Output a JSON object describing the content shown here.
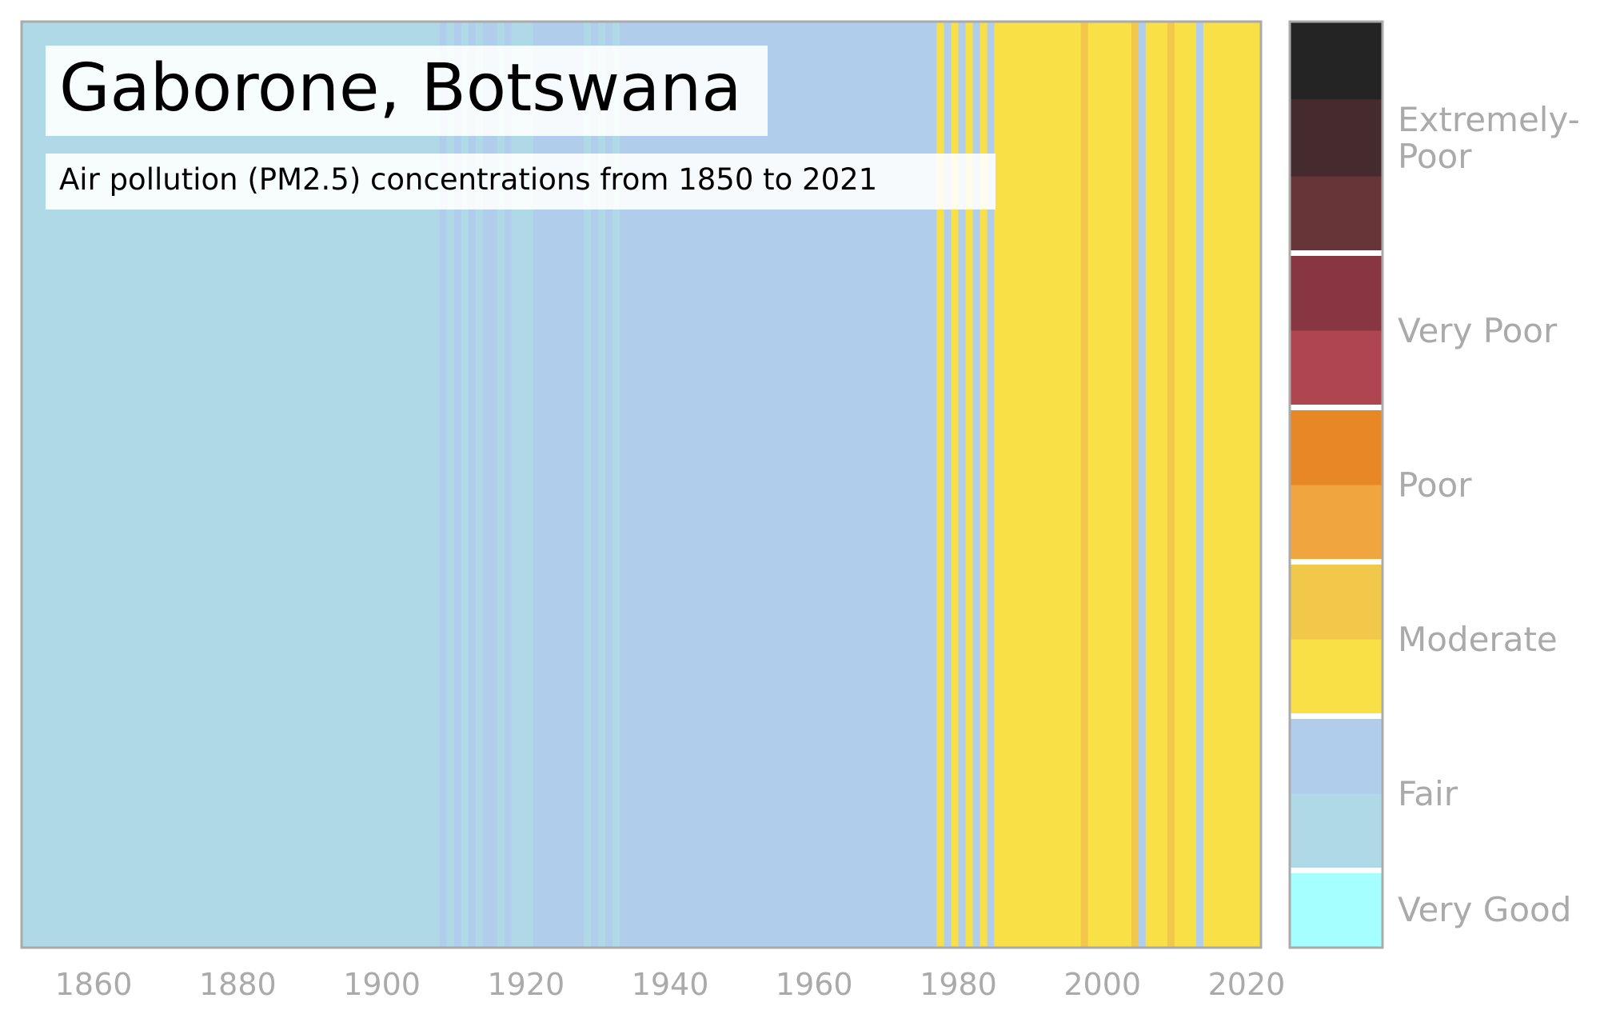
{
  "chart_data": {
    "type": "heatmap",
    "title": "Gaborone, Botswana",
    "subtitle": "Air pollution (PM2.5) concentrations from 1850 to 2021",
    "x_range": [
      1850,
      2022
    ],
    "x_ticks": [
      "1860",
      "1880",
      "1900",
      "1920",
      "1940",
      "1960",
      "1980",
      "2000",
      "2020"
    ],
    "legend_position": "right",
    "levels": [
      {
        "key": "very_good",
        "color": "#a5ffff"
      },
      {
        "key": "fair_low",
        "color": "#b0d9e8"
      },
      {
        "key": "fair_high",
        "color": "#b0ceec"
      },
      {
        "key": "moderate_low",
        "color": "#f9e047"
      },
      {
        "key": "moderate_high",
        "color": "#f2c84b"
      },
      {
        "key": "poor_low",
        "color": "#f0a53f"
      },
      {
        "key": "poor_high",
        "color": "#e88726"
      },
      {
        "key": "very_poor_low",
        "color": "#af4550"
      },
      {
        "key": "very_poor_high",
        "color": "#873642"
      },
      {
        "key": "extremely_poor_low",
        "color": "#673537"
      },
      {
        "key": "extremely_poor_mid",
        "color": "#452b2e"
      },
      {
        "key": "extremely_poor_high",
        "color": "#242424"
      }
    ],
    "category_labels": [
      {
        "label": "Extremely-\nPoor",
        "level_from": 9,
        "level_to": 11
      },
      {
        "label": "Very Poor",
        "level_from": 7,
        "level_to": 8
      },
      {
        "label": "Poor",
        "level_from": 5,
        "level_to": 6
      },
      {
        "label": "Moderate",
        "level_from": 3,
        "level_to": 4
      },
      {
        "label": "Fair",
        "level_from": 1,
        "level_to": 2
      },
      {
        "label": "Very Good",
        "level_from": 0,
        "level_to": 0
      }
    ],
    "category_breaks": [
      1,
      3,
      5,
      7,
      9
    ],
    "stripes": [
      {
        "from": 1850,
        "to": 1908,
        "level": 1
      },
      {
        "from": 1908,
        "to": 1909,
        "level": 2
      },
      {
        "from": 1909,
        "to": 1910,
        "level": 1
      },
      {
        "from": 1910,
        "to": 1911,
        "level": 2
      },
      {
        "from": 1911,
        "to": 1912,
        "level": 1
      },
      {
        "from": 1912,
        "to": 1913,
        "level": 2
      },
      {
        "from": 1913,
        "to": 1914,
        "level": 1
      },
      {
        "from": 1914,
        "to": 1916,
        "level": 2
      },
      {
        "from": 1916,
        "to": 1917,
        "level": 1
      },
      {
        "from": 1917,
        "to": 1918,
        "level": 2
      },
      {
        "from": 1918,
        "to": 1919,
        "level": 1
      },
      {
        "from": 1919,
        "to": 1921,
        "level": 1
      },
      {
        "from": 1921,
        "to": 1928,
        "level": 2
      },
      {
        "from": 1928,
        "to": 1929,
        "level": 1
      },
      {
        "from": 1929,
        "to": 1930,
        "level": 2
      },
      {
        "from": 1930,
        "to": 1931,
        "level": 1
      },
      {
        "from": 1931,
        "to": 1932,
        "level": 2
      },
      {
        "from": 1932,
        "to": 1933,
        "level": 1
      },
      {
        "from": 1933,
        "to": 1977,
        "level": 2
      },
      {
        "from": 1977,
        "to": 1978,
        "level": 3
      },
      {
        "from": 1978,
        "to": 1979,
        "level": 2
      },
      {
        "from": 1979,
        "to": 1980,
        "level": 3
      },
      {
        "from": 1980,
        "to": 1981,
        "level": 2
      },
      {
        "from": 1981,
        "to": 1982,
        "level": 3
      },
      {
        "from": 1982,
        "to": 1983,
        "level": 2
      },
      {
        "from": 1983,
        "to": 1984,
        "level": 3
      },
      {
        "from": 1984,
        "to": 1985,
        "level": 2
      },
      {
        "from": 1985,
        "to": 1997,
        "level": 3
      },
      {
        "from": 1997,
        "to": 1998,
        "level": 4
      },
      {
        "from": 1998,
        "to": 2004,
        "level": 3
      },
      {
        "from": 2004,
        "to": 2005,
        "level": 4
      },
      {
        "from": 2005,
        "to": 2006,
        "level": 2
      },
      {
        "from": 2006,
        "to": 2009,
        "level": 3
      },
      {
        "from": 2009,
        "to": 2010,
        "level": 4
      },
      {
        "from": 2010,
        "to": 2013,
        "level": 3
      },
      {
        "from": 2013,
        "to": 2014,
        "level": 2
      },
      {
        "from": 2014,
        "to": 2022,
        "level": 3
      }
    ]
  }
}
